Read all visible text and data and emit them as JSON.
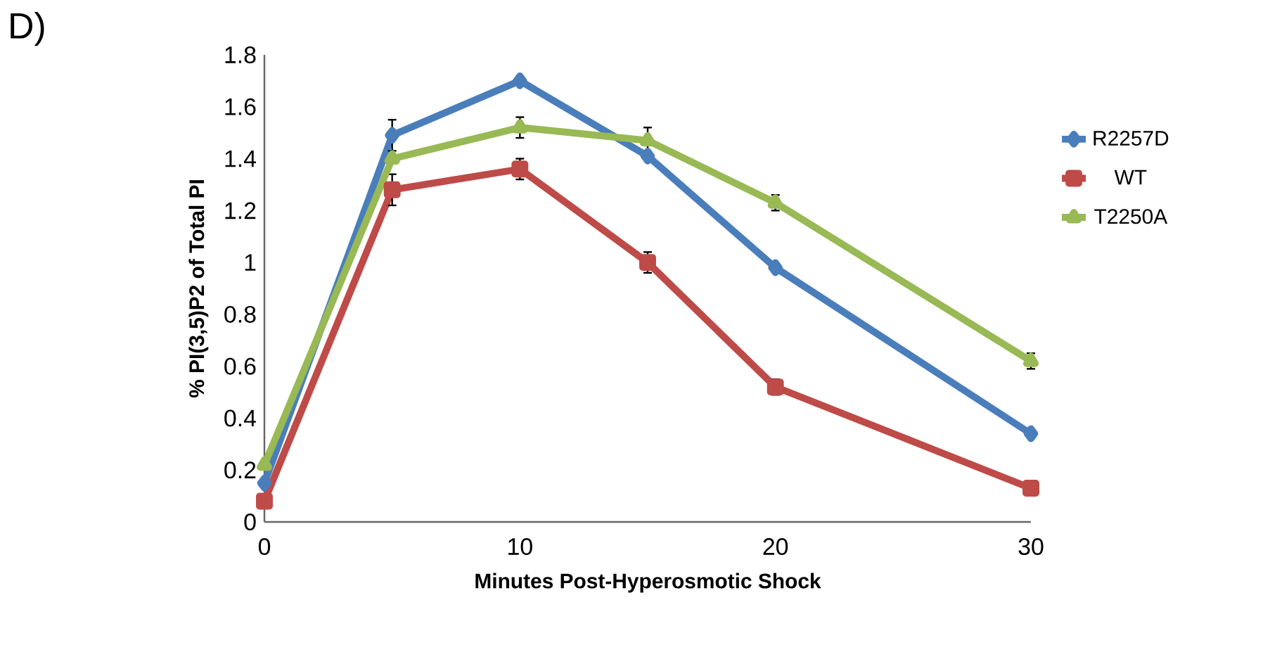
{
  "chart_data": {
    "type": "line",
    "title": "D)",
    "xlabel": "Minutes Post-Hyperosmotic Shock",
    "ylabel": "% PI(3,5)P2 of Total PI",
    "x": [
      0,
      5,
      10,
      15,
      20,
      30
    ],
    "series": [
      {
        "name": "R2257D",
        "color": "#4a7ebb",
        "marker": "diamond",
        "values": [
          0.15,
          1.49,
          1.7,
          1.41,
          0.98,
          0.34
        ],
        "errors": [
          null,
          0.06,
          null,
          null,
          null,
          null
        ]
      },
      {
        "name": "WT",
        "color": "#be4b48",
        "marker": "square",
        "values": [
          0.08,
          1.28,
          1.36,
          1.0,
          0.52,
          0.13
        ],
        "errors": [
          null,
          0.06,
          0.04,
          0.04,
          0.03,
          null
        ]
      },
      {
        "name": "T2250A",
        "color": "#98b954",
        "marker": "triangle",
        "values": [
          0.22,
          1.4,
          1.52,
          1.47,
          1.23,
          0.62
        ],
        "errors": [
          null,
          null,
          0.04,
          0.05,
          0.03,
          0.03
        ]
      }
    ],
    "xlim": [
      0,
      30
    ],
    "ylim": [
      0,
      1.8
    ],
    "xticks": [
      0,
      10,
      20,
      30
    ],
    "yticks": [
      0,
      0.2,
      0.4,
      0.6,
      0.8,
      1,
      1.2,
      1.4,
      1.6,
      1.8
    ],
    "grid": false,
    "legend": "right",
    "line_style": "solid"
  }
}
